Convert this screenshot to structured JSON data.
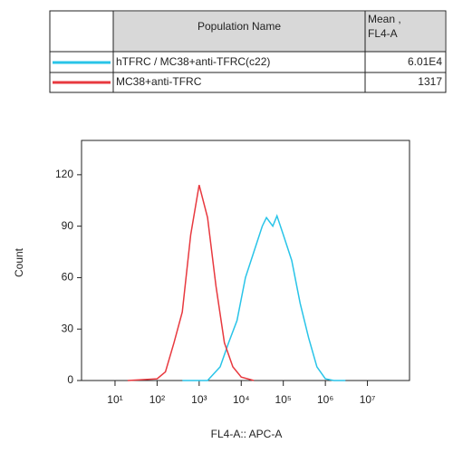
{
  "table": {
    "header": [
      "Population Name",
      "Mean ,\nFL4-A"
    ],
    "rows": [
      [
        "hTFRC / MC38+anti-TFRC(c22)",
        "6.01E4"
      ],
      [
        "MC38+anti-TFRC",
        "1317"
      ]
    ]
  },
  "chart_data": {
    "type": "line",
    "ylabel": "Count",
    "xlabel": "FL4-A:: APC-A",
    "xscale": "log",
    "xlim": [
      1.6,
      100000000
    ],
    "ylim": [
      0,
      140
    ],
    "xticks": [
      {
        "value": 10,
        "label": "10¹"
      },
      {
        "value": 100,
        "label": "10²"
      },
      {
        "value": 1000,
        "label": "10³"
      },
      {
        "value": 10000,
        "label": "10⁴"
      },
      {
        "value": 100000,
        "label": "10⁵"
      },
      {
        "value": 1000000,
        "label": "10⁶"
      },
      {
        "value": 10000000,
        "label": "10⁷"
      }
    ],
    "yticks": [
      0,
      30,
      60,
      90,
      120
    ],
    "series": [
      {
        "name": "hTFRC / MC38+anti-TFRC(c22)",
        "color": "#29c4e8",
        "x": [
          400,
          1585,
          3162,
          5012,
          7943,
          12589,
          19953,
          31623,
          39811,
          56234,
          70795,
          100000,
          158489,
          251189,
          398107,
          630957,
          1000000,
          1584893,
          3000000
        ],
        "values": [
          0,
          0,
          8,
          22,
          35,
          60,
          75,
          90,
          95,
          90,
          96,
          85,
          70,
          45,
          25,
          8,
          1,
          0,
          0
        ]
      },
      {
        "name": "MC38+anti-TFRC",
        "color": "#e8393f",
        "x": [
          20,
          100,
          158,
          251,
          398,
          631,
          1000,
          1585,
          2512,
          3981,
          6310,
          10000,
          19953
        ],
        "values": [
          0,
          1,
          5,
          22,
          40,
          85,
          114,
          95,
          55,
          22,
          8,
          2,
          0
        ]
      }
    ]
  }
}
